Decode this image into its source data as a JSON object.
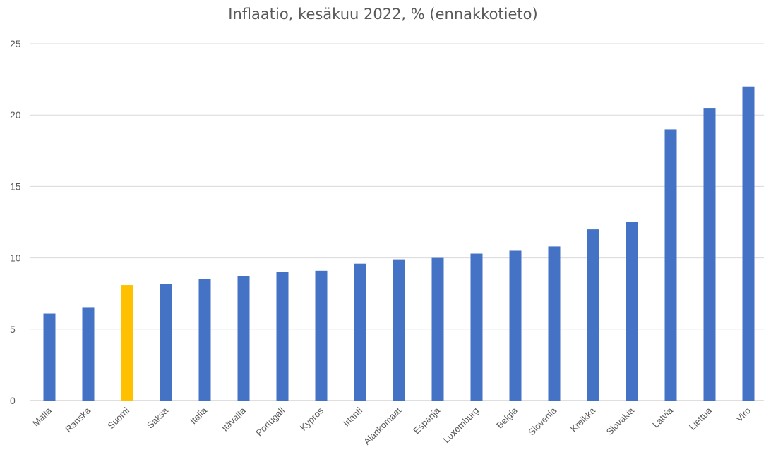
{
  "chart_data": {
    "type": "bar",
    "title": "Inflaatio, kesäkuu 2022, % (ennakkotieto)",
    "xlabel": "",
    "ylabel": "",
    "ylim": [
      0,
      25
    ],
    "yticks": [
      0,
      5,
      10,
      15,
      20,
      25
    ],
    "grid": true,
    "legend": "none",
    "categories": [
      "Malta",
      "Ranska",
      "Suomi",
      "Saksa",
      "Italia",
      "Itävalta",
      "Portugali",
      "Kypros",
      "Irlanti",
      "Alankomaat",
      "Espanja",
      "Luxemburg",
      "Belgia",
      "Slovenia",
      "Kreikka",
      "Slovakia",
      "Latvia",
      "Liettua",
      "Viro"
    ],
    "values": [
      6.1,
      6.5,
      8.1,
      8.2,
      8.5,
      8.7,
      9.0,
      9.1,
      9.6,
      9.9,
      10.0,
      10.3,
      10.5,
      10.8,
      12.0,
      12.5,
      19.0,
      20.5,
      22.0
    ],
    "highlight": "Suomi",
    "colors": {
      "bar": "#4472C4",
      "highlight": "#FFC000",
      "grid": "#d9d9d9",
      "text": "#595959"
    }
  }
}
